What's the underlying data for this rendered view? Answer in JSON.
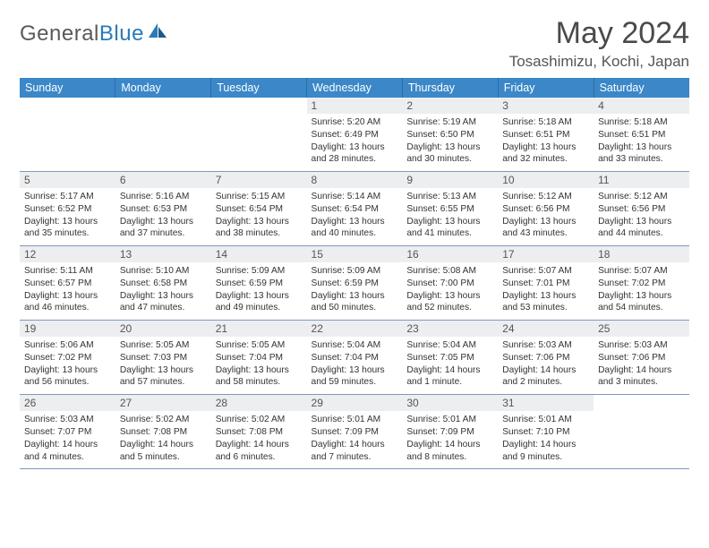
{
  "brand": {
    "general": "General",
    "blue": "Blue"
  },
  "colors": {
    "header_bg": "#3b87c8",
    "divider": "#7d9abb",
    "daynum_bg": "#eceef0"
  },
  "title": "May 2024",
  "location": "Tosashimizu, Kochi, Japan",
  "day_headers": [
    "Sunday",
    "Monday",
    "Tuesday",
    "Wednesday",
    "Thursday",
    "Friday",
    "Saturday"
  ],
  "weeks": [
    [
      {
        "n": "",
        "empty": true
      },
      {
        "n": "",
        "empty": true
      },
      {
        "n": "",
        "empty": true
      },
      {
        "n": "1",
        "sr": "Sunrise: 5:20 AM",
        "ss": "Sunset: 6:49 PM",
        "dl": "Daylight: 13 hours and 28 minutes."
      },
      {
        "n": "2",
        "sr": "Sunrise: 5:19 AM",
        "ss": "Sunset: 6:50 PM",
        "dl": "Daylight: 13 hours and 30 minutes."
      },
      {
        "n": "3",
        "sr": "Sunrise: 5:18 AM",
        "ss": "Sunset: 6:51 PM",
        "dl": "Daylight: 13 hours and 32 minutes."
      },
      {
        "n": "4",
        "sr": "Sunrise: 5:18 AM",
        "ss": "Sunset: 6:51 PM",
        "dl": "Daylight: 13 hours and 33 minutes."
      }
    ],
    [
      {
        "n": "5",
        "sr": "Sunrise: 5:17 AM",
        "ss": "Sunset: 6:52 PM",
        "dl": "Daylight: 13 hours and 35 minutes."
      },
      {
        "n": "6",
        "sr": "Sunrise: 5:16 AM",
        "ss": "Sunset: 6:53 PM",
        "dl": "Daylight: 13 hours and 37 minutes."
      },
      {
        "n": "7",
        "sr": "Sunrise: 5:15 AM",
        "ss": "Sunset: 6:54 PM",
        "dl": "Daylight: 13 hours and 38 minutes."
      },
      {
        "n": "8",
        "sr": "Sunrise: 5:14 AM",
        "ss": "Sunset: 6:54 PM",
        "dl": "Daylight: 13 hours and 40 minutes."
      },
      {
        "n": "9",
        "sr": "Sunrise: 5:13 AM",
        "ss": "Sunset: 6:55 PM",
        "dl": "Daylight: 13 hours and 41 minutes."
      },
      {
        "n": "10",
        "sr": "Sunrise: 5:12 AM",
        "ss": "Sunset: 6:56 PM",
        "dl": "Daylight: 13 hours and 43 minutes."
      },
      {
        "n": "11",
        "sr": "Sunrise: 5:12 AM",
        "ss": "Sunset: 6:56 PM",
        "dl": "Daylight: 13 hours and 44 minutes."
      }
    ],
    [
      {
        "n": "12",
        "sr": "Sunrise: 5:11 AM",
        "ss": "Sunset: 6:57 PM",
        "dl": "Daylight: 13 hours and 46 minutes."
      },
      {
        "n": "13",
        "sr": "Sunrise: 5:10 AM",
        "ss": "Sunset: 6:58 PM",
        "dl": "Daylight: 13 hours and 47 minutes."
      },
      {
        "n": "14",
        "sr": "Sunrise: 5:09 AM",
        "ss": "Sunset: 6:59 PM",
        "dl": "Daylight: 13 hours and 49 minutes."
      },
      {
        "n": "15",
        "sr": "Sunrise: 5:09 AM",
        "ss": "Sunset: 6:59 PM",
        "dl": "Daylight: 13 hours and 50 minutes."
      },
      {
        "n": "16",
        "sr": "Sunrise: 5:08 AM",
        "ss": "Sunset: 7:00 PM",
        "dl": "Daylight: 13 hours and 52 minutes."
      },
      {
        "n": "17",
        "sr": "Sunrise: 5:07 AM",
        "ss": "Sunset: 7:01 PM",
        "dl": "Daylight: 13 hours and 53 minutes."
      },
      {
        "n": "18",
        "sr": "Sunrise: 5:07 AM",
        "ss": "Sunset: 7:02 PM",
        "dl": "Daylight: 13 hours and 54 minutes."
      }
    ],
    [
      {
        "n": "19",
        "sr": "Sunrise: 5:06 AM",
        "ss": "Sunset: 7:02 PM",
        "dl": "Daylight: 13 hours and 56 minutes."
      },
      {
        "n": "20",
        "sr": "Sunrise: 5:05 AM",
        "ss": "Sunset: 7:03 PM",
        "dl": "Daylight: 13 hours and 57 minutes."
      },
      {
        "n": "21",
        "sr": "Sunrise: 5:05 AM",
        "ss": "Sunset: 7:04 PM",
        "dl": "Daylight: 13 hours and 58 minutes."
      },
      {
        "n": "22",
        "sr": "Sunrise: 5:04 AM",
        "ss": "Sunset: 7:04 PM",
        "dl": "Daylight: 13 hours and 59 minutes."
      },
      {
        "n": "23",
        "sr": "Sunrise: 5:04 AM",
        "ss": "Sunset: 7:05 PM",
        "dl": "Daylight: 14 hours and 1 minute."
      },
      {
        "n": "24",
        "sr": "Sunrise: 5:03 AM",
        "ss": "Sunset: 7:06 PM",
        "dl": "Daylight: 14 hours and 2 minutes."
      },
      {
        "n": "25",
        "sr": "Sunrise: 5:03 AM",
        "ss": "Sunset: 7:06 PM",
        "dl": "Daylight: 14 hours and 3 minutes."
      }
    ],
    [
      {
        "n": "26",
        "sr": "Sunrise: 5:03 AM",
        "ss": "Sunset: 7:07 PM",
        "dl": "Daylight: 14 hours and 4 minutes."
      },
      {
        "n": "27",
        "sr": "Sunrise: 5:02 AM",
        "ss": "Sunset: 7:08 PM",
        "dl": "Daylight: 14 hours and 5 minutes."
      },
      {
        "n": "28",
        "sr": "Sunrise: 5:02 AM",
        "ss": "Sunset: 7:08 PM",
        "dl": "Daylight: 14 hours and 6 minutes."
      },
      {
        "n": "29",
        "sr": "Sunrise: 5:01 AM",
        "ss": "Sunset: 7:09 PM",
        "dl": "Daylight: 14 hours and 7 minutes."
      },
      {
        "n": "30",
        "sr": "Sunrise: 5:01 AM",
        "ss": "Sunset: 7:09 PM",
        "dl": "Daylight: 14 hours and 8 minutes."
      },
      {
        "n": "31",
        "sr": "Sunrise: 5:01 AM",
        "ss": "Sunset: 7:10 PM",
        "dl": "Daylight: 14 hours and 9 minutes."
      },
      {
        "n": "",
        "empty": true
      }
    ]
  ]
}
